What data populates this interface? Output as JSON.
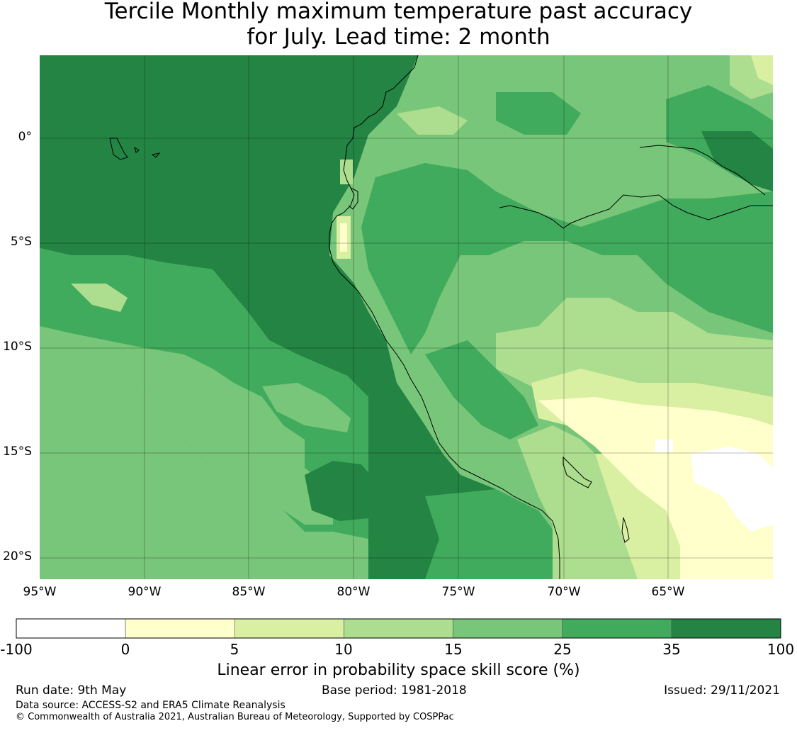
{
  "title": {
    "line1": "Tercile Monthly maximum temperature past accuracy",
    "line2": "for July. Lead time: 2 month"
  },
  "map": {
    "lon_range": [
      -95,
      -60
    ],
    "lat_range": [
      -21,
      4
    ],
    "lat_ticks": [
      {
        "value": 0,
        "label": "0°"
      },
      {
        "value": -5,
        "label": "5°S"
      },
      {
        "value": -10,
        "label": "10°S"
      },
      {
        "value": -15,
        "label": "15°S"
      },
      {
        "value": -20,
        "label": "20°S"
      }
    ],
    "lon_ticks": [
      {
        "value": -95,
        "label": "95°W"
      },
      {
        "value": -90,
        "label": "90°W"
      },
      {
        "value": -85,
        "label": "85°W"
      },
      {
        "value": -80,
        "label": "80°W"
      },
      {
        "value": -75,
        "label": "75°W"
      },
      {
        "value": -70,
        "label": "70°W"
      },
      {
        "value": -65,
        "label": "65°W"
      }
    ],
    "gridlines": true
  },
  "colorbar": {
    "label": "Linear error in probability space skill score (%)",
    "bins": [
      {
        "from": "-100",
        "to": "0",
        "color": "#ffffff"
      },
      {
        "from": "0",
        "to": "5",
        "color": "#ffffcc"
      },
      {
        "from": "5",
        "to": "10",
        "color": "#d9f0a3"
      },
      {
        "from": "10",
        "to": "15",
        "color": "#addd8e"
      },
      {
        "from": "15",
        "to": "25",
        "color": "#78c679"
      },
      {
        "from": "25",
        "to": "35",
        "color": "#41ab5d"
      },
      {
        "from": "35",
        "to": "100",
        "color": "#238443"
      }
    ],
    "tick_labels": [
      "-100",
      "0",
      "5",
      "10",
      "15",
      "25",
      "35",
      "100"
    ]
  },
  "footer": {
    "run_date": "Run date: 9th May",
    "base_period": "Base period: 1981-2018",
    "issued": "Issued: 29/11/2021",
    "data_source": "Data source: ACCESS-S2 and ERA5 Climate Reanalysis",
    "copyright": "© Commonwealth of Australia 2021, Australian Bureau of Meteorology, Supported by COSPPac"
  }
}
